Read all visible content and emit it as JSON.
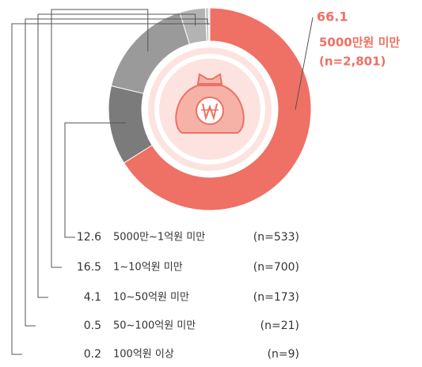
{
  "chart_data": {
    "type": "pie",
    "categories": [
      "5000만원 미만",
      "5000만~1억원 미만",
      "1~10억원 미만",
      "10~50억원 미만",
      "50~100억원 미만",
      "100억원 이상"
    ],
    "values": [
      66.1,
      12.6,
      16.5,
      4.1,
      0.5,
      0.2
    ],
    "counts": [
      "(n=2,801)",
      "(n=533)",
      "(n=700)",
      "(n=173)",
      "(n=21)",
      "(n=9)"
    ],
    "colors": [
      "#ef7064",
      "#7b7b7b",
      "#9a9a9a",
      "#b3b3b3",
      "#c9c9c9",
      "#dddddd"
    ]
  }
}
